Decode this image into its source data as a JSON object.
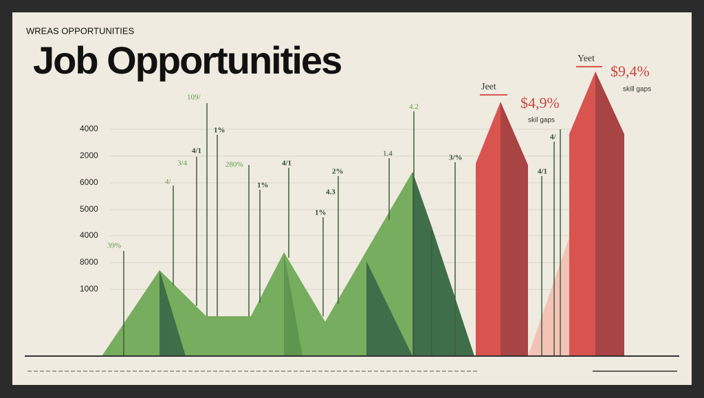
{
  "header": {
    "subtitle": "WREAS OPPORTUNITIES",
    "title": "Job Opportunities"
  },
  "axis_labels": [
    "4000",
    "2000",
    "6000",
    "5000",
    "4000",
    "8000",
    "1000"
  ],
  "annotations": [
    "109/",
    "1%",
    "4/1",
    "3/4",
    "4/",
    "280%",
    "4/1",
    "1%",
    "2%",
    "4.3",
    "1%",
    "1.4",
    "4.2",
    "3/%",
    "39%",
    "4/1",
    "4/"
  ],
  "callouts": [
    {
      "label": "Jeet",
      "value": "$4,9%",
      "note": "skil gaps"
    },
    {
      "label": "Yeet",
      "value": "$9,4%",
      "note": "skill gaps"
    }
  ]
}
